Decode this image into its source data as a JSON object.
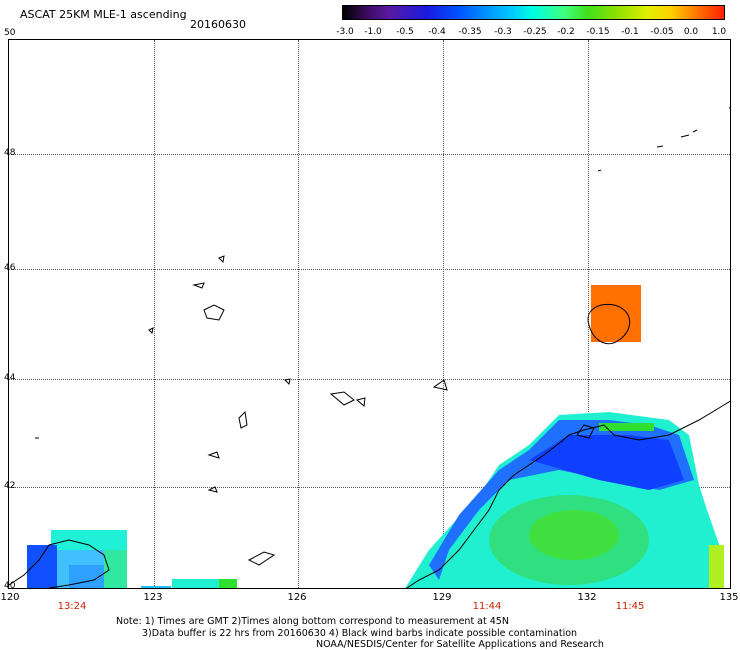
{
  "header": {
    "title": "ASCAT 25KM MLE-1 ascending",
    "date": "20160630"
  },
  "colorbar": {
    "ticks": [
      "-3.0",
      "-1.0",
      "-0.5",
      "-0.4",
      "-0.35",
      "-0.3",
      "-0.25",
      "-0.2",
      "-0.15",
      "-0.1",
      "-0.05",
      "0.0",
      "1.0"
    ]
  },
  "map": {
    "lat_labels": [
      "50",
      "48",
      "46",
      "44",
      "42",
      "40"
    ],
    "lon_labels": [
      "120",
      "123",
      "126",
      "129",
      "132",
      "135"
    ],
    "time_labels": [
      "13:24",
      "11:44",
      "11:45"
    ]
  },
  "footer": {
    "note_line1": "Note: 1) Times are GMT 2)Times along bottom correspond to measurement at 45N",
    "note_line2": "3)Data buffer is 22 hrs from 20160630 4) Black wind barbs indicate possible contamination",
    "note_line3": "NOAA/NESDIS/Center for Satellite Applications and Research"
  },
  "colors": {
    "land_swath_orange": "#ff7000",
    "swath_green": "#40e060",
    "swath_cyan": "#20ffe0",
    "swath_blue": "#1040ff"
  }
}
